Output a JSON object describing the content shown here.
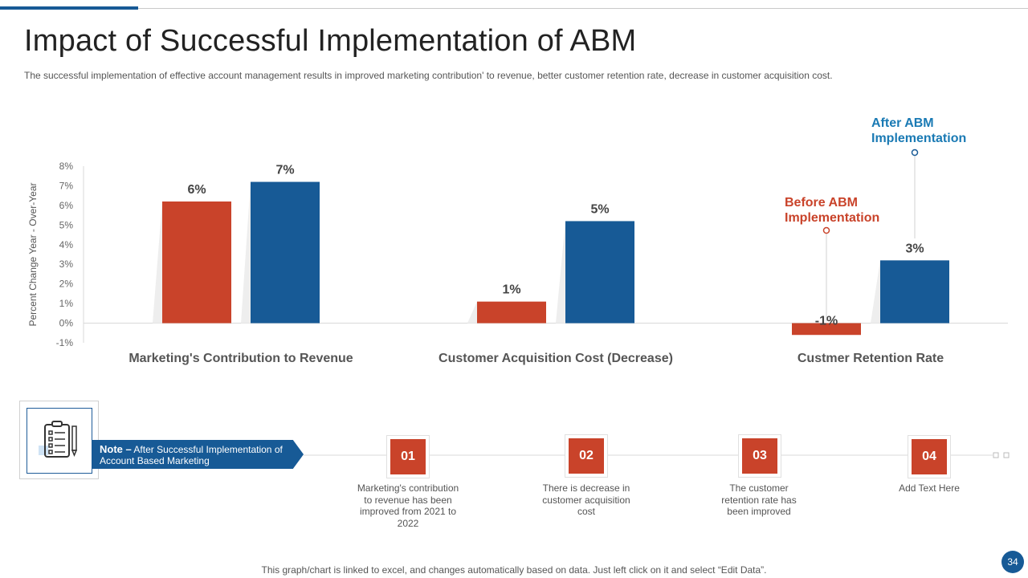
{
  "header": {
    "title": "Impact of Successful Implementation  of ABM",
    "subtitle": "The successful implementation  of effective  account management  results in improved  marketing contribution' to revenue,  better customer retention rate, decrease in customer acquisition cost."
  },
  "colors": {
    "before": "#c9432a",
    "after": "#175a96",
    "accent": "#175a96"
  },
  "chart_data": {
    "type": "bar",
    "categories": [
      "Marketing's Contribution to Revenue",
      "Customer Acquisition Cost (Decrease)",
      "Custmer Retention Rate"
    ],
    "series": [
      {
        "name": "Before ABM Implementation",
        "values": [
          6.2,
          1.1,
          -0.6
        ],
        "labels": [
          "6%",
          "1%",
          "-1%"
        ]
      },
      {
        "name": "After ABM Implementation",
        "values": [
          7.2,
          5.2,
          3.2
        ],
        "labels": [
          "7%",
          "5%",
          "3%"
        ]
      }
    ],
    "ylabel": "Percent Change  Year - Over-Year",
    "ylim": [
      -1,
      8
    ],
    "yticks": [
      -1,
      0,
      1,
      2,
      3,
      4,
      5,
      6,
      7,
      8
    ],
    "ytick_labels": [
      "-1%",
      "0%",
      "1%",
      "2%",
      "3%",
      "4%",
      "5%",
      "6%",
      "7%",
      "8%"
    ],
    "callouts": {
      "before": [
        "Before ABM",
        "Implementation"
      ],
      "after": [
        "After ABM",
        "Implementation"
      ]
    }
  },
  "note": {
    "label": "Note –",
    "text": " After Successful Implementation of Account Based Marketing"
  },
  "steps": [
    {
      "num": "01",
      "text": "Marketing's contribution to revenue has been improved from 2021 to 2022"
    },
    {
      "num": "02",
      "text": "There is decrease in customer acquisition cost"
    },
    {
      "num": "03",
      "text": "The customer retention rate has been improved"
    },
    {
      "num": "04",
      "text": "Add Text Here"
    }
  ],
  "footer": {
    "note": "This graph/chart is linked to excel,  and changes automatically based on data. Just left click on it and select “Edit Data”.",
    "page": "34"
  }
}
